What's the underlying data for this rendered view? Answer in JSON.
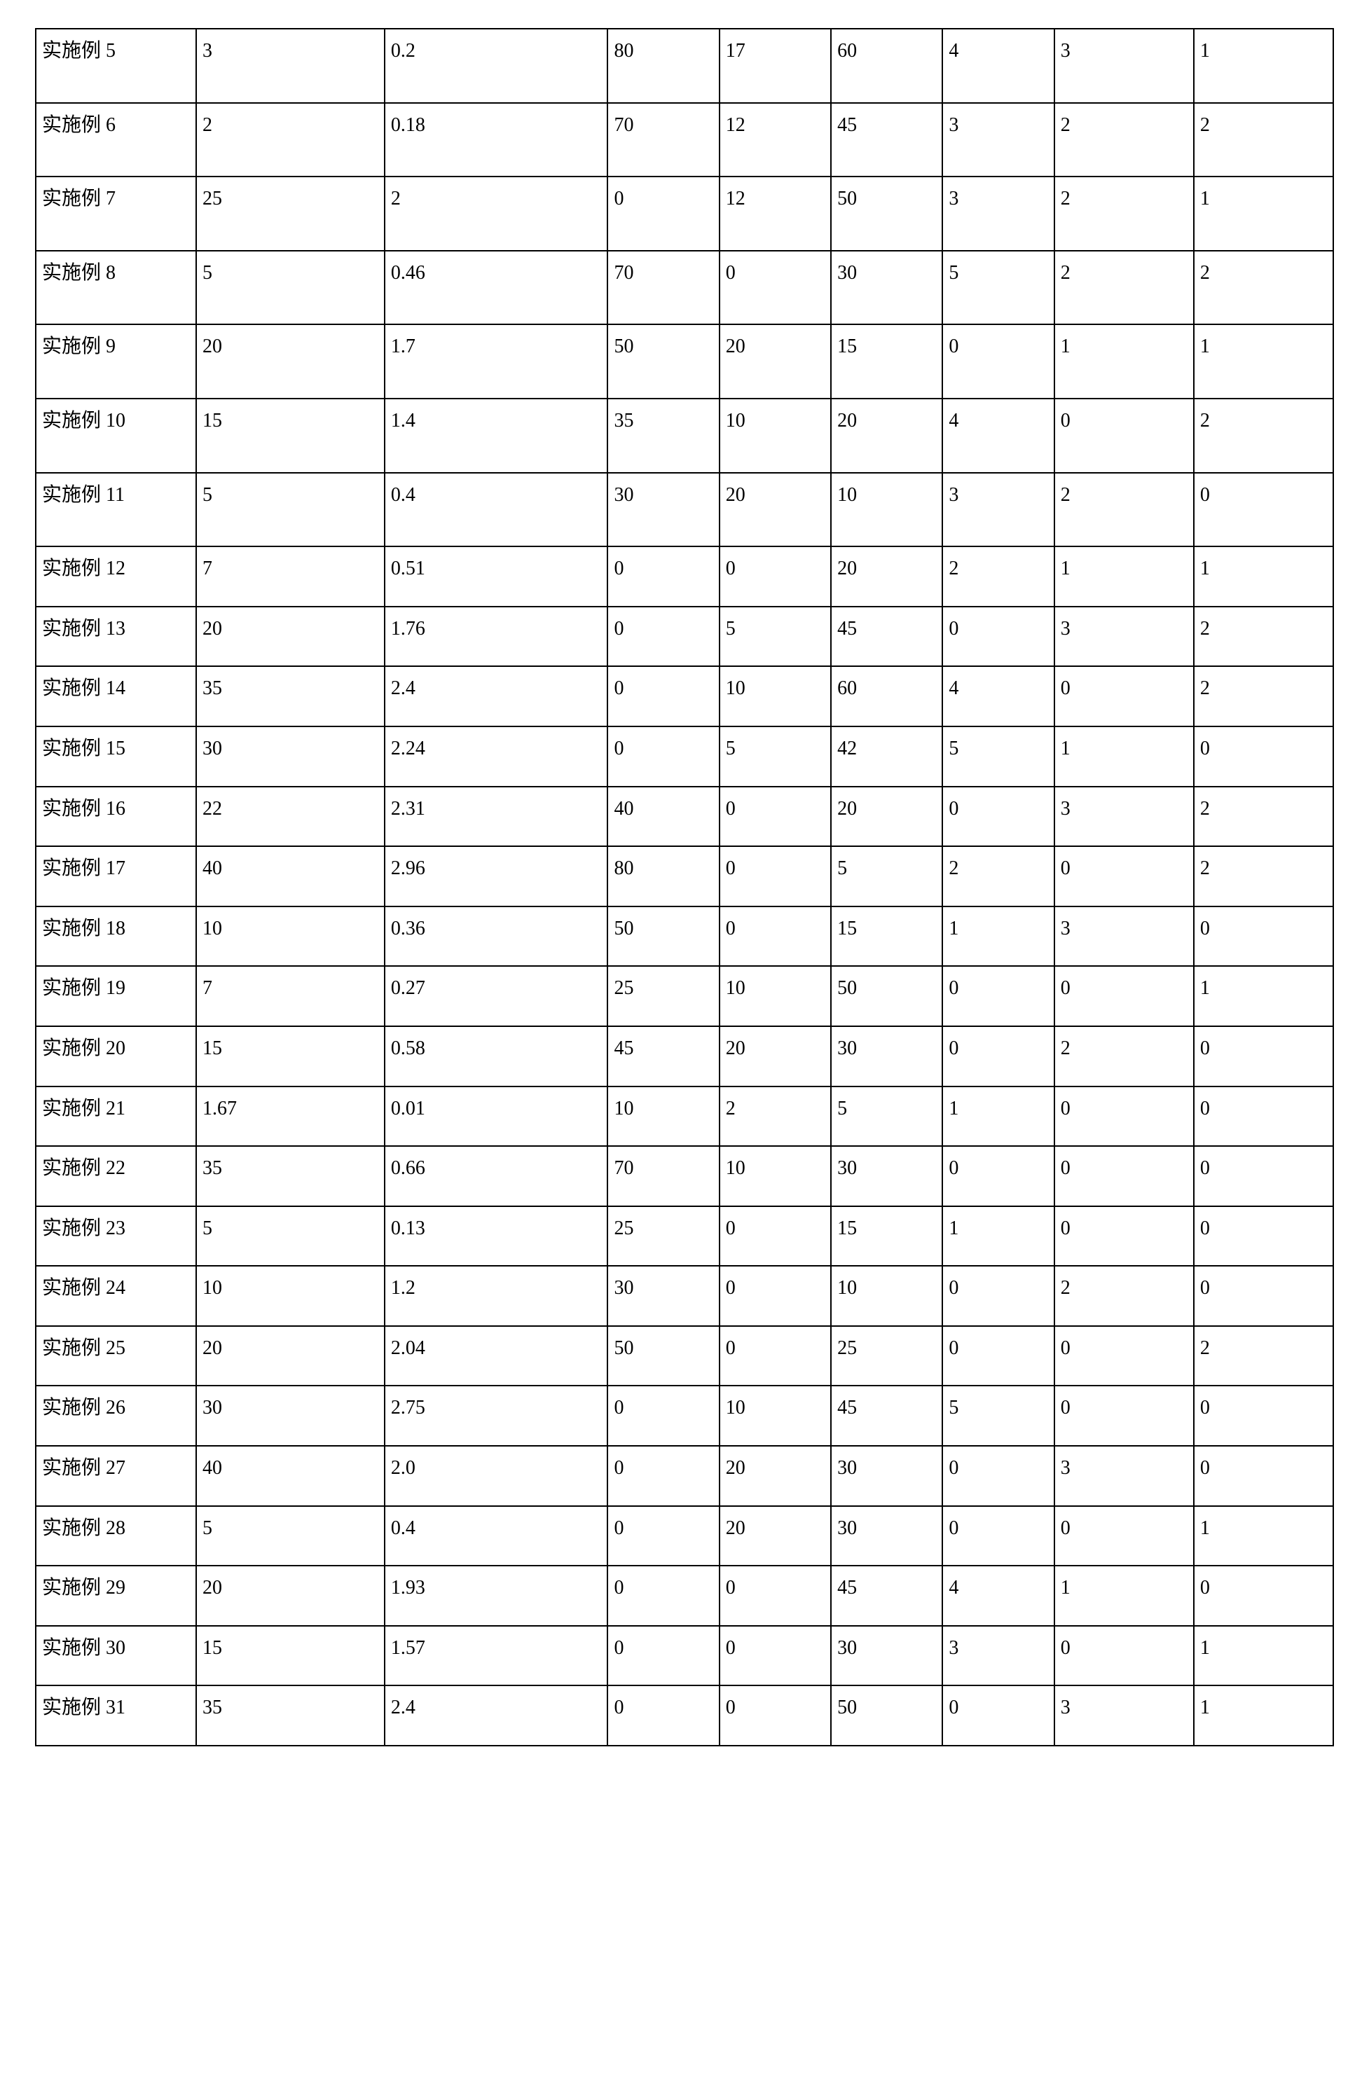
{
  "table": {
    "background_color": "#ffffff",
    "border_color": "#000000",
    "font_family": "SimSun / serif",
    "font_size_pt": 14,
    "text_color": "#000000",
    "column_widths_percent": [
      11.5,
      13.5,
      16,
      8,
      8,
      8,
      8,
      10,
      10
    ],
    "rows": [
      {
        "label": "实施例 5",
        "values": [
          "3",
          "0.2",
          "80",
          "17",
          "60",
          "4",
          "3",
          "1"
        ]
      },
      {
        "label": "实施例 6",
        "values": [
          "2",
          "0.18",
          "70",
          "12",
          "45",
          "3",
          "2",
          "2"
        ]
      },
      {
        "label": "实施例 7",
        "values": [
          "25",
          "2",
          "0",
          "12",
          "50",
          "3",
          "2",
          "1"
        ]
      },
      {
        "label": "实施例 8",
        "values": [
          "5",
          "0.46",
          "70",
          "0",
          "30",
          "5",
          "2",
          "2"
        ]
      },
      {
        "label": "实施例 9",
        "values": [
          "20",
          "1.7",
          "50",
          "20",
          "15",
          "0",
          "1",
          "1"
        ]
      },
      {
        "label": "实施例 10",
        "values": [
          "15",
          "1.4",
          "35",
          "10",
          "20",
          "4",
          "0",
          "2"
        ]
      },
      {
        "label": "实施例 11",
        "values": [
          "5",
          "0.4",
          "30",
          "20",
          "10",
          "3",
          "2",
          "0"
        ]
      },
      {
        "label": "实施例 12",
        "values": [
          "7",
          "0.51",
          "0",
          "0",
          "20",
          "2",
          "1",
          "1"
        ]
      },
      {
        "label": "实施例 13",
        "values": [
          "20",
          "1.76",
          "0",
          "5",
          "45",
          "0",
          "3",
          "2"
        ]
      },
      {
        "label": "实施例 14",
        "values": [
          "35",
          "2.4",
          "0",
          "10",
          "60",
          "4",
          "0",
          "2"
        ]
      },
      {
        "label": "实施例 15",
        "values": [
          "30",
          "2.24",
          "0",
          "5",
          "42",
          "5",
          "1",
          "0"
        ]
      },
      {
        "label": "实施例 16",
        "values": [
          "22",
          "2.31",
          "40",
          "0",
          "20",
          "0",
          "3",
          "2"
        ]
      },
      {
        "label": "实施例 17",
        "values": [
          "40",
          "2.96",
          "80",
          "0",
          "5",
          "2",
          "0",
          "2"
        ]
      },
      {
        "label": "实施例 18",
        "values": [
          "10",
          "0.36",
          "50",
          "0",
          "15",
          "1",
          "3",
          "0"
        ]
      },
      {
        "label": "实施例 19",
        "values": [
          "7",
          "0.27",
          "25",
          "10",
          "50",
          "0",
          "0",
          "1"
        ]
      },
      {
        "label": "实施例 20",
        "values": [
          "15",
          "0.58",
          "45",
          "20",
          "30",
          "0",
          "2",
          "0"
        ]
      },
      {
        "label": "实施例 21",
        "values": [
          "1.67",
          "0.01",
          "10",
          "2",
          "5",
          "1",
          "0",
          "0"
        ]
      },
      {
        "label": "实施例 22",
        "values": [
          "35",
          "0.66",
          "70",
          "10",
          "30",
          "0",
          "0",
          "0"
        ]
      },
      {
        "label": "实施例 23",
        "values": [
          "5",
          "0.13",
          "25",
          "0",
          "15",
          "1",
          "0",
          "0"
        ]
      },
      {
        "label": "实施例 24",
        "values": [
          "10",
          "1.2",
          "30",
          "0",
          "10",
          "0",
          "2",
          "0"
        ]
      },
      {
        "label": "实施例 25",
        "values": [
          "20",
          "2.04",
          "50",
          "0",
          "25",
          "0",
          "0",
          "2"
        ]
      },
      {
        "label": "实施例 26",
        "values": [
          "30",
          "2.75",
          "0",
          "10",
          "45",
          "5",
          "0",
          "0"
        ]
      },
      {
        "label": "实施例 27",
        "values": [
          "40",
          "2.0",
          "0",
          "20",
          "30",
          "0",
          "3",
          "0"
        ]
      },
      {
        "label": "实施例 28",
        "values": [
          "5",
          "0.4",
          "0",
          "20",
          "30",
          "0",
          "0",
          "1"
        ]
      },
      {
        "label": "实施例 29",
        "values": [
          "20",
          "1.93",
          "0",
          "0",
          "45",
          "4",
          "1",
          "0"
        ]
      },
      {
        "label": "实施例 30",
        "values": [
          "15",
          "1.57",
          "0",
          "0",
          "30",
          "3",
          "0",
          "1"
        ]
      },
      {
        "label": "实施例 31",
        "values": [
          "35",
          "2.4",
          "0",
          "0",
          "50",
          "0",
          "3",
          "1"
        ]
      }
    ],
    "tall_row_indices": [
      0,
      1,
      2,
      3,
      4,
      5,
      6
    ]
  }
}
